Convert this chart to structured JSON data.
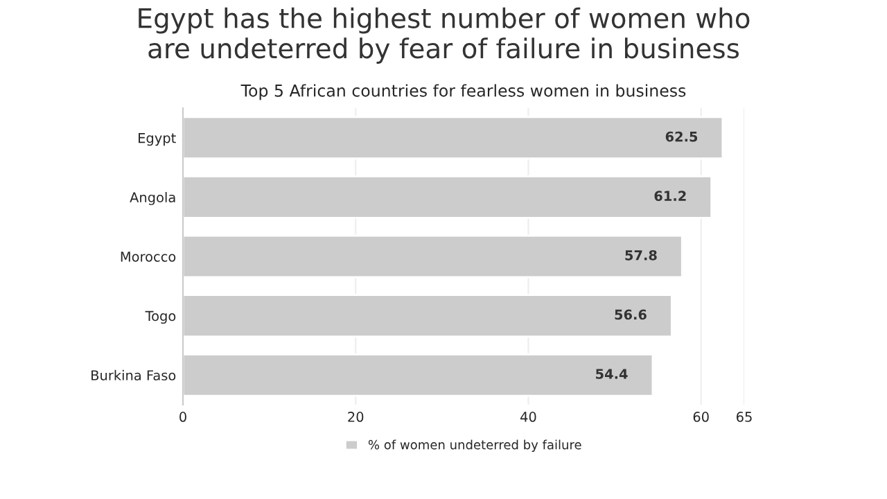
{
  "chart_data": {
    "type": "bar",
    "orientation": "horizontal",
    "title": "Egypt has the highest number of women who\nare undeterred by fear of failure in business",
    "subtitle": "Top 5 African countries for fearless women in business",
    "categories": [
      "Egypt",
      "Angola",
      "Morocco",
      "Togo",
      "Burkina Faso"
    ],
    "series": [
      {
        "name": "% of women undeterred by failure",
        "color": "#cccccc",
        "values": [
          62.5,
          61.2,
          57.8,
          56.6,
          54.4
        ]
      }
    ],
    "xlim": [
      0,
      65
    ],
    "xticks": [
      0,
      20,
      40,
      60,
      65
    ],
    "grid": "x",
    "data_labels": true,
    "legend": "bottom"
  }
}
